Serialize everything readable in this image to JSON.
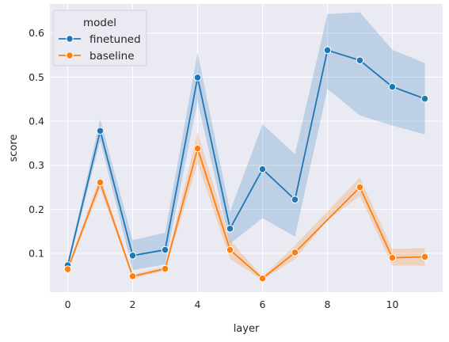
{
  "chart_data": {
    "type": "line",
    "xlabel": "layer",
    "ylabel": "score",
    "x": [
      0,
      1,
      2,
      3,
      4,
      5,
      6,
      7,
      8,
      9,
      10,
      11
    ],
    "xlim": [
      -0.55,
      11.55
    ],
    "ylim": [
      0.012,
      0.666
    ],
    "xticks": [
      0,
      2,
      4,
      6,
      8,
      10
    ],
    "yticks": [
      0.1,
      0.2,
      0.3,
      0.4,
      0.5,
      0.6
    ],
    "grid": true,
    "legend": {
      "title": "model",
      "placement": "top-left"
    },
    "series": [
      {
        "name": "finetuned",
        "color": "#1f77b4",
        "values": [
          0.073,
          0.378,
          0.095,
          0.108,
          0.499,
          0.156,
          0.291,
          0.222,
          0.561,
          0.538,
          0.478,
          0.451
        ],
        "ci_low": [
          0.066,
          0.355,
          0.062,
          0.075,
          0.445,
          0.122,
          0.18,
          0.138,
          0.473,
          0.413,
          0.39,
          0.37
        ],
        "ci_high": [
          0.08,
          0.405,
          0.13,
          0.147,
          0.555,
          0.195,
          0.393,
          0.325,
          0.643,
          0.647,
          0.562,
          0.532
        ]
      },
      {
        "name": "baseline",
        "color": "#ff7f0e",
        "values": [
          0.064,
          0.261,
          0.048,
          0.065,
          0.338,
          0.108,
          0.043,
          0.102,
          null,
          0.25,
          0.09,
          0.092
        ],
        "ci_low": [
          0.06,
          0.246,
          0.044,
          0.06,
          0.305,
          0.087,
          0.04,
          0.087,
          0.175,
          0.23,
          0.072,
          0.072
        ],
        "ci_high": [
          0.068,
          0.276,
          0.052,
          0.07,
          0.375,
          0.13,
          0.047,
          0.118,
          0.195,
          0.272,
          0.11,
          0.112
        ]
      }
    ]
  }
}
